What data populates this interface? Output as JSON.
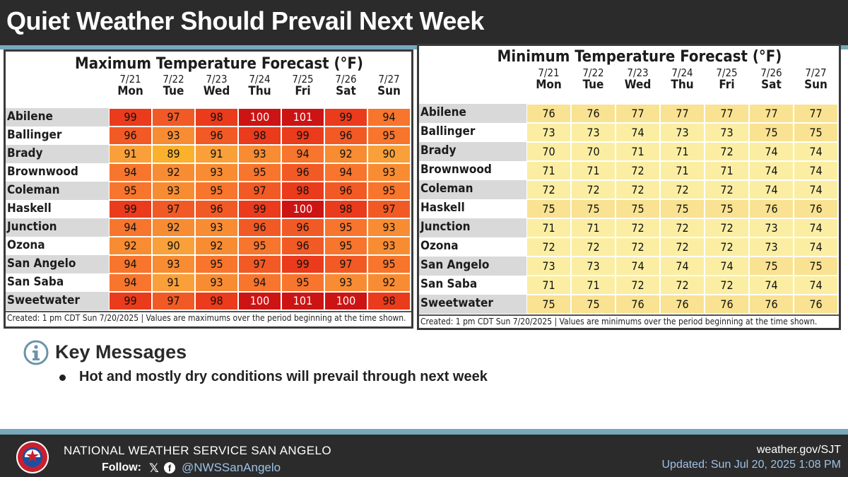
{
  "header": {
    "title": "Quiet Weather Should Prevail Next Week"
  },
  "columns": [
    {
      "date": "7/21",
      "day": "Mon"
    },
    {
      "date": "7/22",
      "day": "Tue"
    },
    {
      "date": "7/23",
      "day": "Wed"
    },
    {
      "date": "7/24",
      "day": "Thu"
    },
    {
      "date": "7/25",
      "day": "Fri"
    },
    {
      "date": "7/26",
      "day": "Sat"
    },
    {
      "date": "7/27",
      "day": "Sun"
    }
  ],
  "max_table": {
    "title": "Maximum Temperature Forecast (°F)",
    "footer": "Created: 1 pm CDT Sun 7/20/2025  |  Values are maximums over the period beginning at the time shown.",
    "rows": [
      {
        "city": "Abilene",
        "values": [
          99,
          97,
          98,
          100,
          101,
          99,
          94
        ]
      },
      {
        "city": "Ballinger",
        "values": [
          96,
          93,
          96,
          98,
          99,
          96,
          95
        ]
      },
      {
        "city": "Brady",
        "values": [
          91,
          89,
          91,
          93,
          94,
          92,
          90
        ]
      },
      {
        "city": "Brownwood",
        "values": [
          94,
          92,
          93,
          95,
          96,
          94,
          93
        ]
      },
      {
        "city": "Coleman",
        "values": [
          95,
          93,
          95,
          97,
          98,
          96,
          95
        ]
      },
      {
        "city": "Haskell",
        "values": [
          99,
          97,
          96,
          99,
          100,
          98,
          97
        ]
      },
      {
        "city": "Junction",
        "values": [
          94,
          92,
          93,
          96,
          96,
          95,
          93
        ]
      },
      {
        "city": "Ozona",
        "values": [
          92,
          90,
          92,
          95,
          96,
          95,
          93
        ]
      },
      {
        "city": "San Angelo",
        "values": [
          94,
          93,
          95,
          97,
          99,
          97,
          95
        ]
      },
      {
        "city": "San Saba",
        "values": [
          94,
          91,
          93,
          94,
          95,
          93,
          92
        ]
      },
      {
        "city": "Sweetwater",
        "values": [
          99,
          97,
          98,
          100,
          101,
          100,
          98
        ]
      }
    ]
  },
  "min_table": {
    "title": "Minimum Temperature Forecast (°F)",
    "footer": "Created: 1 pm CDT Sun 7/20/2025  |  Values are minimums over the period beginning at the time shown.",
    "rows": [
      {
        "city": "Abilene",
        "values": [
          76,
          76,
          77,
          77,
          77,
          77,
          77
        ]
      },
      {
        "city": "Ballinger",
        "values": [
          73,
          73,
          74,
          73,
          73,
          75,
          75
        ]
      },
      {
        "city": "Brady",
        "values": [
          70,
          70,
          71,
          71,
          72,
          74,
          74
        ]
      },
      {
        "city": "Brownwood",
        "values": [
          71,
          71,
          72,
          71,
          71,
          74,
          74
        ]
      },
      {
        "city": "Coleman",
        "values": [
          72,
          72,
          72,
          72,
          72,
          74,
          74
        ]
      },
      {
        "city": "Haskell",
        "values": [
          75,
          75,
          75,
          75,
          75,
          76,
          76
        ]
      },
      {
        "city": "Junction",
        "values": [
          71,
          71,
          72,
          72,
          72,
          73,
          74
        ]
      },
      {
        "city": "Ozona",
        "values": [
          72,
          72,
          72,
          72,
          72,
          73,
          74
        ]
      },
      {
        "city": "San Angelo",
        "values": [
          73,
          73,
          74,
          74,
          74,
          75,
          75
        ]
      },
      {
        "city": "San Saba",
        "values": [
          71,
          71,
          72,
          72,
          72,
          74,
          74
        ]
      },
      {
        "city": "Sweetwater",
        "values": [
          75,
          75,
          76,
          76,
          76,
          76,
          76
        ]
      }
    ]
  },
  "key_messages": {
    "heading": "Key Messages",
    "items": [
      "Hot and mostly dry conditions will prevail through next week"
    ]
  },
  "footer": {
    "org": "NATIONAL WEATHER SERVICE SAN ANGELO",
    "follow_label": "Follow:",
    "x_glyph": "𝕏",
    "fb_glyph": "f",
    "handle": "@NWSSanAngelo",
    "site": "weather.gov/SJT",
    "updated": "Updated: Sun Jul 20, 2025 1:08 PM"
  },
  "colors": {
    "title_bar": "#2b2b2b",
    "accent_rule": "#78a8bb",
    "min_cell": "#fbeea3",
    "min_cell_warm": "#f9e291",
    "row_band": "#d9d9d9"
  }
}
